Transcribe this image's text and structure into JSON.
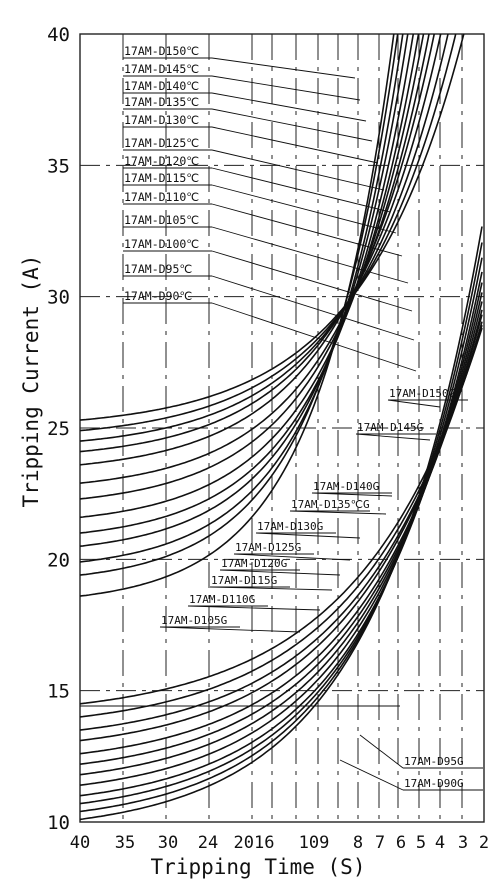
{
  "chart_data": {
    "type": "line",
    "xlabel": "Tripping Time (S)",
    "ylabel": "Tripping Current (A)",
    "ylim": [
      10,
      40
    ],
    "y_ticks": [
      "10",
      "15",
      "20",
      "25",
      "30",
      "35",
      "40"
    ],
    "x_ticks": [
      "40",
      "35",
      "30",
      "24",
      "2016",
      "109",
      "8",
      "7",
      "6",
      "5",
      "4",
      "3",
      "2"
    ],
    "x_axis_direction": "descending",
    "grid": true,
    "series_groups": [
      {
        "suffix": "°C",
        "series": [
          {
            "name": "17AM-D150℃",
            "base_current_at_40s": 25.3
          },
          {
            "name": "17AM-D145℃",
            "base_current_at_40s": 24.9
          },
          {
            "name": "17AM-D140℃",
            "base_current_at_40s": 24.5
          },
          {
            "name": "17AM-D135℃",
            "base_current_at_40s": 24.1
          },
          {
            "name": "17AM-D130℃",
            "base_current_at_40s": 23.6
          },
          {
            "name": "17AM-D125℃",
            "base_current_at_40s": 22.9
          },
          {
            "name": "17AM-D120℃",
            "base_current_at_40s": 22.3
          },
          {
            "name": "17AM-D115℃",
            "base_current_at_40s": 21.6
          },
          {
            "name": "17AM-D110℃",
            "base_current_at_40s": 21.0
          },
          {
            "name": "17AM-D105℃",
            "base_current_at_40s": 20.5
          },
          {
            "name": "17AM-D100℃",
            "base_current_at_40s": 19.9
          },
          {
            "name": "17AM-D95℃",
            "base_current_at_40s": 19.4
          },
          {
            "name": "17AM-D90℃",
            "base_current_at_40s": 18.6
          }
        ]
      },
      {
        "suffix": "G",
        "series": [
          {
            "name": "17AM-D150G",
            "base_current_at_40s": 14.5
          },
          {
            "name": "17AM-D145G",
            "base_current_at_40s": 14.0
          },
          {
            "name": "17AM-D140G",
            "base_current_at_40s": 13.5
          },
          {
            "name": "17AM-D135℃G",
            "base_current_at_40s": 13.1
          },
          {
            "name": "17AM-D130G",
            "base_current_at_40s": 12.6
          },
          {
            "name": "17AM-D125G",
            "base_current_at_40s": 12.2
          },
          {
            "name": "17AM-D120G",
            "base_current_at_40s": 11.8
          },
          {
            "name": "17AM-D115G",
            "base_current_at_40s": 11.4
          },
          {
            "name": "17AM-D110G",
            "base_current_at_40s": 11.0
          },
          {
            "name": "17AM-D105G",
            "base_current_at_40s": 10.7
          },
          {
            "name": "17AM-D95G",
            "base_current_at_40s": 10.4
          },
          {
            "name": "17AM-D90G",
            "base_current_at_40s": 10.1
          }
        ]
      }
    ]
  },
  "colors": {
    "line": "#111111",
    "grid": "#222222",
    "background": "#ffffff"
  }
}
